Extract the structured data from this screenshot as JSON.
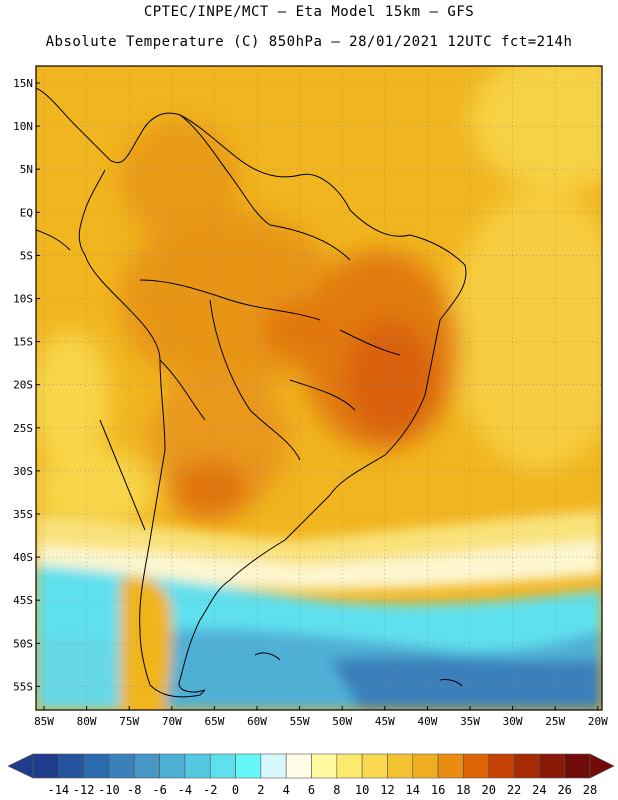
{
  "header": {
    "line1": "CPTEC/INPE/MCT –  Eta Model 15km – GFS",
    "line2": "Absolute Temperature (C) 850hPa – 28/01/2021 12UTC fct=214h"
  },
  "map": {
    "lat_labels": [
      "15N",
      "10N",
      "5N",
      "EQ",
      "5S",
      "10S",
      "15S",
      "20S",
      "25S",
      "30S",
      "35S",
      "40S",
      "45S",
      "50S",
      "55S"
    ],
    "lon_labels": [
      "85W",
      "80W",
      "75W",
      "70W",
      "65W",
      "60W",
      "55W",
      "50W",
      "45W",
      "40W",
      "35W",
      "30W",
      "25W",
      "20W"
    ]
  },
  "colorbar": {
    "labels": [
      "-14",
      "-12",
      "-10",
      "-8",
      "-6",
      "-4",
      "-2",
      "0",
      "2",
      "4",
      "6",
      "8",
      "10",
      "12",
      "14",
      "16",
      "18",
      "20",
      "22",
      "24",
      "26",
      "28"
    ],
    "colors": [
      "#1f3c8c",
      "#24549e",
      "#2b6aad",
      "#3a80bb",
      "#4696c6",
      "#4fb0d6",
      "#55c8e2",
      "#5fe0ee",
      "#66f8f8",
      "#d6f7fb",
      "#fffde6",
      "#fffaa0",
      "#fde96e",
      "#f9d850",
      "#f3c332",
      "#efae1e",
      "#e98d12",
      "#de6406",
      "#c64204",
      "#a82a05",
      "#891806",
      "#700b08"
    ]
  }
}
